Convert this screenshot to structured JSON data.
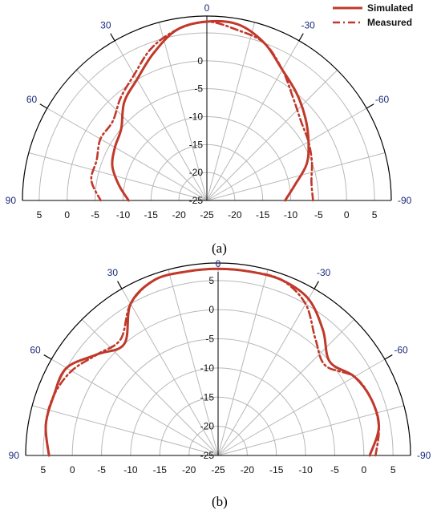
{
  "legend": [
    {
      "label": "Simulated",
      "color": "#c0392b",
      "dash": "solid"
    },
    {
      "label": "Measured",
      "color": "#c0392b",
      "dash": "dashdot"
    }
  ],
  "chart_data": [
    {
      "type": "line",
      "coordinate_system": "polar",
      "caption": "(a)",
      "angle_ticks": [
        "90",
        "60",
        "30",
        "0",
        "-30",
        "-60",
        "-90"
      ],
      "angle_tick_values": [
        90,
        60,
        30,
        0,
        -30,
        -60,
        -90
      ],
      "radial_ticks": [
        "5",
        "0",
        "-5",
        "-10",
        "-15",
        "-20",
        "-25"
      ],
      "radial_ticks_vertical": [
        "0",
        "-5",
        "-10",
        "-15",
        "-20",
        "-25"
      ],
      "radial_ticks_right": [
        "-20",
        "-15",
        "-10",
        "-5",
        "0",
        "5"
      ],
      "rlim": [
        -25,
        8
      ],
      "grid": true,
      "legend_placement": "top-right",
      "series": [
        {
          "name": "Simulated",
          "points": [
            [
              -90,
              -11
            ],
            [
              -80,
              -9
            ],
            [
              -70,
              -6
            ],
            [
              -60,
              -4
            ],
            [
              -50,
              -2
            ],
            [
              -40,
              0
            ],
            [
              -30,
              2
            ],
            [
              -20,
              5
            ],
            [
              -10,
              7
            ],
            [
              0,
              7
            ],
            [
              10,
              6
            ],
            [
              20,
              3
            ],
            [
              30,
              0
            ],
            [
              40,
              -2
            ],
            [
              50,
              -5
            ],
            [
              60,
              -6
            ],
            [
              70,
              -7
            ],
            [
              80,
              -9
            ],
            [
              90,
              -11
            ]
          ]
        },
        {
          "name": "Measured",
          "points": [
            [
              -90,
              -6
            ],
            [
              -80,
              -6
            ],
            [
              -70,
              -5
            ],
            [
              -60,
              -4
            ],
            [
              -50,
              -3
            ],
            [
              -40,
              -1
            ],
            [
              -30,
              2
            ],
            [
              -20,
              5
            ],
            [
              -10,
              6
            ],
            [
              0,
              7
            ],
            [
              10,
              6
            ],
            [
              20,
              4
            ],
            [
              30,
              1
            ],
            [
              40,
              -1
            ],
            [
              50,
              -3
            ],
            [
              60,
              -3
            ],
            [
              70,
              -4
            ],
            [
              80,
              -4
            ],
            [
              90,
              -6
            ]
          ]
        }
      ]
    },
    {
      "type": "line",
      "coordinate_system": "polar",
      "caption": "(b)",
      "angle_ticks": [
        "90",
        "60",
        "30",
        "0",
        "-30",
        "-60",
        "-90"
      ],
      "angle_tick_values": [
        90,
        60,
        30,
        0,
        -30,
        -60,
        -90
      ],
      "radial_ticks": [
        "5",
        "0",
        "-5",
        "-10",
        "-15",
        "-20",
        "-25"
      ],
      "radial_ticks_vertical": [
        "5",
        "0",
        "-5",
        "-10",
        "-15",
        "-20",
        "-25"
      ],
      "radial_ticks_right": [
        "-20",
        "-15",
        "-10",
        "-5",
        "0",
        "5"
      ],
      "rlim": [
        -25,
        8
      ],
      "grid": true,
      "series": [
        {
          "name": "Simulated",
          "points": [
            [
              -90,
              1
            ],
            [
              -80,
              3
            ],
            [
              -70,
              3
            ],
            [
              -60,
              2
            ],
            [
              -50,
              0
            ],
            [
              -40,
              3
            ],
            [
              -30,
              6
            ],
            [
              -20,
              7
            ],
            [
              -10,
              7
            ],
            [
              0,
              7
            ],
            [
              10,
              7
            ],
            [
              20,
              7
            ],
            [
              30,
              5
            ],
            [
              40,
              0
            ],
            [
              50,
              2
            ],
            [
              60,
              5
            ],
            [
              70,
              5
            ],
            [
              80,
              5
            ],
            [
              90,
              4
            ]
          ]
        },
        {
          "name": "Measured",
          "points": [
            [
              -90,
              2
            ],
            [
              -80,
              3
            ],
            [
              -70,
              3
            ],
            [
              -60,
              2
            ],
            [
              -50,
              -1
            ],
            [
              -40,
              1
            ],
            [
              -30,
              5
            ],
            [
              -20,
              7
            ],
            [
              -10,
              7
            ],
            [
              0,
              7
            ],
            [
              10,
              7
            ],
            [
              20,
              7
            ],
            [
              30,
              5
            ],
            [
              40,
              1
            ],
            [
              50,
              2
            ],
            [
              60,
              4
            ],
            [
              70,
              5
            ],
            [
              80,
              5
            ],
            [
              90,
              4
            ]
          ]
        }
      ]
    }
  ]
}
